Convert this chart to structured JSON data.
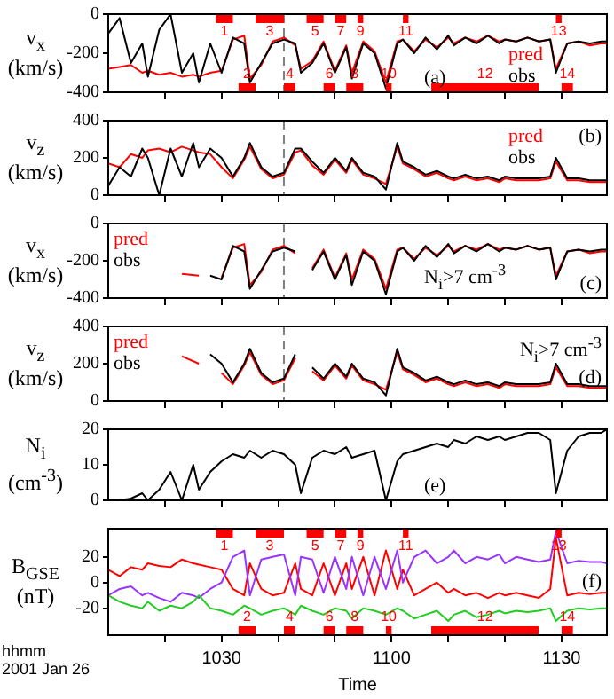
{
  "chart_data": [
    {
      "type": "line",
      "ylabel": "v$_{x}$ (km/s)",
      "legend": "bottom right",
      "annotations": [
        "(a)"
      ],
      "tick_labels": "y",
      "grid": false,
      "x": [
        "2001-01-26T10:10",
        "2001-01-26T10:12",
        "2001-01-26T10:14",
        "2001-01-26T10:16",
        "2001-01-26T10:17",
        "2001-01-26T10:19",
        "2001-01-26T10:21",
        "2001-01-26T10:23",
        "2001-01-26T10:25",
        "2001-01-26T10:26",
        "2001-01-26T10:28",
        "2001-01-26T10:30",
        "2001-01-26T10:32",
        "2001-01-26T10:34",
        "2001-01-26T10:35",
        "2001-01-26T10:37",
        "2001-01-26T10:39",
        "2001-01-26T10:41",
        "2001-01-26T10:43",
        "2001-01-26T10:44",
        "2001-01-26T10:46",
        "2001-01-26T10:48",
        "2001-01-26T10:50",
        "2001-01-26T10:52",
        "2001-01-26T10:53",
        "2001-01-26T10:55",
        "2001-01-26T10:57",
        "2001-01-26T10:59",
        "2001-01-26T11:01",
        "2001-01-26T11:02",
        "2001-01-26T11:04",
        "2001-01-26T11:06",
        "2001-01-26T11:08",
        "2001-01-26T11:10",
        "2001-01-26T11:11",
        "2001-01-26T11:13",
        "2001-01-26T11:15",
        "2001-01-26T11:17",
        "2001-01-26T11:19",
        "2001-01-26T11:20",
        "2001-01-26T11:22",
        "2001-01-26T11:24",
        "2001-01-26T11:26",
        "2001-01-26T11:28",
        "2001-01-26T11:29",
        "2001-01-26T11:31",
        "2001-01-26T11:33",
        "2001-01-26T11:35",
        "2001-01-26T11:37",
        "2001-01-26T11:38"
      ],
      "xlim": [
        "2001-01-26T10:10",
        "2001-01-26T11:38"
      ],
      "xticks": [
        {
          "value": "2001-01-26T10:20",
          "label": null
        },
        {
          "value": "2001-01-26T10:30",
          "label": null
        },
        {
          "value": "2001-01-26T10:40",
          "label": null
        },
        {
          "value": "2001-01-26T10:50",
          "label": null
        },
        {
          "value": "2001-01-26T11:00",
          "label": null
        },
        {
          "value": "2001-01-26T11:10",
          "label": null
        },
        {
          "value": "2001-01-26T11:20",
          "label": null
        },
        {
          "value": "2001-01-26T11:30",
          "label": null
        }
      ],
      "ylim": [
        -400,
        0
      ],
      "yticks": [
        -400,
        -200,
        0
      ],
      "ref_lines": [
        {
          "axis": "x",
          "value": "2001-01-26T10:41",
          "color": "#808080",
          "line_style": "dashed"
        }
      ],
      "bands": [
        {
          "axis": "x",
          "from": "2001-01-26T10:29",
          "to": "2001-01-26T10:32",
          "label": "1",
          "color": "#ff0000"
        },
        {
          "axis": "x",
          "from": "2001-01-26T10:33",
          "to": "2001-01-26T10:36",
          "label": "2",
          "color": "#ff0000"
        },
        {
          "axis": "x",
          "from": "2001-01-26T10:36",
          "to": "2001-01-26T10:41",
          "label": "3",
          "color": "#ff0000"
        },
        {
          "axis": "x",
          "from": "2001-01-26T10:41",
          "to": "2001-01-26T10:43",
          "label": "4",
          "color": "#ff0000"
        },
        {
          "axis": "x",
          "from": "2001-01-26T10:45",
          "to": "2001-01-26T10:48",
          "label": "5",
          "color": "#ff0000"
        },
        {
          "axis": "x",
          "from": "2001-01-26T10:48",
          "to": "2001-01-26T10:50",
          "label": "6",
          "color": "#ff0000"
        },
        {
          "axis": "x",
          "from": "2001-01-26T10:50",
          "to": "2001-01-26T10:52",
          "label": "7",
          "color": "#ff0000"
        },
        {
          "axis": "x",
          "from": "2001-01-26T10:52",
          "to": "2001-01-26T10:55",
          "label": "8",
          "color": "#ff0000"
        },
        {
          "axis": "x",
          "from": "2001-01-26T10:54",
          "to": "2001-01-26T10:55",
          "label": "9",
          "color": "#ff0000"
        },
        {
          "axis": "x",
          "from": "2001-01-26T10:59",
          "to": "2001-01-26T11:00",
          "label": "10",
          "color": "#ff0000"
        },
        {
          "axis": "x",
          "from": "2001-01-26T11:02",
          "to": "2001-01-26T11:03",
          "label": "11",
          "color": "#ff0000"
        },
        {
          "axis": "x",
          "from": "2001-01-26T11:07",
          "to": "2001-01-26T11:26",
          "label": "12",
          "color": "#ff0000"
        },
        {
          "axis": "x",
          "from": "2001-01-26T11:29",
          "to": "2001-01-26T11:30",
          "label": "13",
          "color": "#ff0000"
        },
        {
          "axis": "x",
          "from": "2001-01-26T11:30",
          "to": "2001-01-26T11:32",
          "label": "14",
          "color": "#ff0000"
        }
      ],
      "series": [
        {
          "name": "pred",
          "color": "#ff0000",
          "values": [
            -280,
            -270,
            -260,
            -300,
            -290,
            -310,
            -300,
            -320,
            -310,
            -320,
            -300,
            -290,
            -130,
            -110,
            -330,
            -260,
            -140,
            -120,
            -160,
            -280,
            -240,
            -140,
            -290,
            -160,
            -300,
            -140,
            -190,
            -350,
            -140,
            -130,
            -190,
            -130,
            -170,
            -120,
            -150,
            -120,
            -140,
            -110,
            -140,
            -130,
            -140,
            -120,
            -140,
            -130,
            -280,
            -150,
            -140,
            -160,
            -150,
            -150
          ]
        },
        {
          "name": "obs",
          "color": "#000000",
          "values": [
            -100,
            -20,
            -250,
            -150,
            -320,
            -80,
            0,
            -300,
            -200,
            -350,
            -150,
            -300,
            -120,
            -150,
            -350,
            -250,
            -150,
            -130,
            -150,
            -300,
            -250,
            -150,
            -300,
            -170,
            -330,
            -150,
            -200,
            -380,
            -150,
            -130,
            -200,
            -120,
            -180,
            -110,
            -160,
            -120,
            -150,
            -110,
            -150,
            -130,
            -140,
            -120,
            -140,
            -130,
            -300,
            -150,
            -140,
            -150,
            -140,
            -140
          ]
        }
      ]
    },
    {
      "type": "line",
      "ylabel": "v$_{z}$ (km/s)",
      "legend": "top right",
      "annotations": [
        "(b)"
      ],
      "tick_labels": "y",
      "grid": false,
      "x": [
        "2001-01-26T10:10",
        "2001-01-26T10:12",
        "2001-01-26T10:14",
        "2001-01-26T10:16",
        "2001-01-26T10:17",
        "2001-01-26T10:19",
        "2001-01-26T10:21",
        "2001-01-26T10:23",
        "2001-01-26T10:25",
        "2001-01-26T10:26",
        "2001-01-26T10:28",
        "2001-01-26T10:30",
        "2001-01-26T10:32",
        "2001-01-26T10:34",
        "2001-01-26T10:35",
        "2001-01-26T10:37",
        "2001-01-26T10:39",
        "2001-01-26T10:41",
        "2001-01-26T10:43",
        "2001-01-26T10:44",
        "2001-01-26T10:46",
        "2001-01-26T10:48",
        "2001-01-26T10:50",
        "2001-01-26T10:52",
        "2001-01-26T10:53",
        "2001-01-26T10:55",
        "2001-01-26T10:57",
        "2001-01-26T10:59",
        "2001-01-26T11:01",
        "2001-01-26T11:02",
        "2001-01-26T11:04",
        "2001-01-26T11:06",
        "2001-01-26T11:08",
        "2001-01-26T11:10",
        "2001-01-26T11:11",
        "2001-01-26T11:13",
        "2001-01-26T11:15",
        "2001-01-26T11:17",
        "2001-01-26T11:19",
        "2001-01-26T11:20",
        "2001-01-26T11:22",
        "2001-01-26T11:24",
        "2001-01-26T11:26",
        "2001-01-26T11:28",
        "2001-01-26T11:29",
        "2001-01-26T11:31",
        "2001-01-26T11:33",
        "2001-01-26T11:35",
        "2001-01-26T11:37",
        "2001-01-26T11:38"
      ],
      "xlim": [
        "2001-01-26T10:10",
        "2001-01-26T11:38"
      ],
      "xticks": [
        {
          "value": "2001-01-26T10:20",
          "label": null
        },
        {
          "value": "2001-01-26T10:30",
          "label": null
        },
        {
          "value": "2001-01-26T10:40",
          "label": null
        },
        {
          "value": "2001-01-26T10:50",
          "label": null
        },
        {
          "value": "2001-01-26T11:00",
          "label": null
        },
        {
          "value": "2001-01-26T11:10",
          "label": null
        },
        {
          "value": "2001-01-26T11:20",
          "label": null
        },
        {
          "value": "2001-01-26T11:30",
          "label": null
        }
      ],
      "ylim": [
        0,
        400
      ],
      "yticks": [
        0,
        200,
        400
      ],
      "ref_lines": [
        {
          "axis": "x",
          "value": "2001-01-26T10:41",
          "color": "#808080",
          "line_style": "dashed"
        }
      ],
      "series": [
        {
          "name": "pred",
          "color": "#ff0000",
          "values": [
            170,
            150,
            220,
            200,
            240,
            250,
            230,
            260,
            240,
            230,
            220,
            150,
            90,
            190,
            260,
            140,
            90,
            110,
            230,
            240,
            160,
            110,
            190,
            120,
            190,
            110,
            90,
            60,
            260,
            170,
            140,
            100,
            120,
            90,
            80,
            100,
            80,
            90,
            70,
            90,
            80,
            80,
            80,
            90,
            180,
            80,
            80,
            70,
            70,
            70
          ]
        },
        {
          "name": "obs",
          "color": "#000000",
          "values": [
            50,
            150,
            100,
            250,
            200,
            0,
            250,
            100,
            280,
            150,
            250,
            200,
            100,
            200,
            280,
            150,
            100,
            120,
            250,
            250,
            180,
            120,
            200,
            130,
            200,
            120,
            100,
            30,
            280,
            180,
            150,
            110,
            130,
            100,
            90,
            110,
            90,
            100,
            80,
            100,
            90,
            90,
            90,
            100,
            200,
            90,
            90,
            80,
            80,
            80
          ]
        }
      ]
    },
    {
      "type": "line",
      "ylabel": "v$_{x}$ (km/s)",
      "legend": "top left",
      "annotations": [
        "N$_{i}$>7 cm$^{-3}$",
        "(c)"
      ],
      "tick_labels": "y",
      "grid": false,
      "xlim": [
        "2001-01-26T10:10",
        "2001-01-26T11:38"
      ],
      "xticks": [
        {
          "value": "2001-01-26T10:20",
          "label": null
        },
        {
          "value": "2001-01-26T10:30",
          "label": null
        },
        {
          "value": "2001-01-26T10:40",
          "label": null
        },
        {
          "value": "2001-01-26T10:50",
          "label": null
        },
        {
          "value": "2001-01-26T11:00",
          "label": null
        },
        {
          "value": "2001-01-26T11:10",
          "label": null
        },
        {
          "value": "2001-01-26T11:20",
          "label": null
        },
        {
          "value": "2001-01-26T11:30",
          "label": null
        }
      ],
      "ylim": [
        -400,
        0
      ],
      "yticks": [
        -400,
        -200,
        0
      ],
      "ref_lines": [
        {
          "axis": "x",
          "value": "2001-01-26T10:41",
          "color": "#808080",
          "line_style": "dashed"
        }
      ],
      "series": [
        {
          "name": "pred",
          "color": "#ff0000",
          "x": [
            "2001-01-26T10:23",
            "2001-01-26T10:26",
            "2001-01-26T10:28",
            "2001-01-26T10:30",
            "2001-01-26T10:32",
            "2001-01-26T10:34",
            "2001-01-26T10:35",
            "2001-01-26T10:37",
            "2001-01-26T10:39",
            "2001-01-26T10:41",
            "2001-01-26T10:43",
            "2001-01-26T10:44",
            "2001-01-26T10:46",
            "2001-01-26T10:48",
            "2001-01-26T10:50",
            "2001-01-26T10:52",
            "2001-01-26T10:53",
            "2001-01-26T10:55",
            "2001-01-26T10:57",
            "2001-01-26T10:59",
            "2001-01-26T11:01",
            "2001-01-26T11:02",
            "2001-01-26T11:04",
            "2001-01-26T11:06",
            "2001-01-26T11:08",
            "2001-01-26T11:10",
            "2001-01-26T11:11",
            "2001-01-26T11:13",
            "2001-01-26T11:15",
            "2001-01-26T11:17",
            "2001-01-26T11:19",
            "2001-01-26T11:20",
            "2001-01-26T11:22",
            "2001-01-26T11:24",
            "2001-01-26T11:26",
            "2001-01-26T11:28",
            "2001-01-26T11:29",
            "2001-01-26T11:31",
            "2001-01-26T11:33",
            "2001-01-26T11:35",
            "2001-01-26T11:37",
            "2001-01-26T11:38"
          ],
          "values": [
            -270,
            -280,
            null,
            -290,
            -130,
            -110,
            -330,
            -260,
            -140,
            -120,
            -160,
            null,
            -240,
            -140,
            -290,
            -160,
            -300,
            -140,
            -190,
            -350,
            -140,
            -130,
            -190,
            -130,
            -170,
            -120,
            -150,
            -120,
            -140,
            -110,
            -140,
            -130,
            -140,
            -120,
            -140,
            -130,
            -280,
            -150,
            -140,
            -160,
            -150,
            -150
          ]
        },
        {
          "name": "obs",
          "color": "#000000",
          "x": [
            "2001-01-26T10:28",
            "2001-01-26T10:30",
            "2001-01-26T10:32",
            "2001-01-26T10:34",
            "2001-01-26T10:35",
            "2001-01-26T10:37",
            "2001-01-26T10:39",
            "2001-01-26T10:41",
            "2001-01-26T10:43",
            "2001-01-26T10:44",
            "2001-01-26T10:46",
            "2001-01-26T10:48",
            "2001-01-26T10:50",
            "2001-01-26T10:52",
            "2001-01-26T10:53",
            "2001-01-26T10:55",
            "2001-01-26T10:57",
            "2001-01-26T10:59",
            "2001-01-26T11:01",
            "2001-01-26T11:02",
            "2001-01-26T11:04",
            "2001-01-26T11:06",
            "2001-01-26T11:08",
            "2001-01-26T11:10",
            "2001-01-26T11:11",
            "2001-01-26T11:13",
            "2001-01-26T11:15",
            "2001-01-26T11:17",
            "2001-01-26T11:19",
            "2001-01-26T11:20",
            "2001-01-26T11:22",
            "2001-01-26T11:24",
            "2001-01-26T11:26",
            "2001-01-26T11:28",
            "2001-01-26T11:29",
            "2001-01-26T11:31",
            "2001-01-26T11:33",
            "2001-01-26T11:35",
            "2001-01-26T11:37",
            "2001-01-26T11:38"
          ],
          "values": [
            -280,
            -300,
            -120,
            -150,
            -350,
            -250,
            -150,
            -130,
            -150,
            null,
            -250,
            -150,
            -300,
            -170,
            -330,
            -150,
            -200,
            -380,
            -150,
            -130,
            -200,
            -120,
            -180,
            -110,
            -160,
            -120,
            -150,
            -110,
            -150,
            -130,
            -140,
            -120,
            -140,
            -130,
            -300,
            -150,
            -140,
            -150,
            -140,
            -140
          ]
        }
      ]
    },
    {
      "type": "line",
      "ylabel": "v$_{z}$ (km/s)",
      "legend": "top left",
      "annotations": [
        "N$_{i}$>7 cm$^{-3}$",
        "(d)"
      ],
      "tick_labels": "y",
      "grid": false,
      "xlim": [
        "2001-01-26T10:10",
        "2001-01-26T11:38"
      ],
      "xticks": [
        {
          "value": "2001-01-26T10:20",
          "label": null
        },
        {
          "value": "2001-01-26T10:30",
          "label": null
        },
        {
          "value": "2001-01-26T10:40",
          "label": null
        },
        {
          "value": "2001-01-26T10:50",
          "label": null
        },
        {
          "value": "2001-01-26T11:00",
          "label": null
        },
        {
          "value": "2001-01-26T11:10",
          "label": null
        },
        {
          "value": "2001-01-26T11:20",
          "label": null
        },
        {
          "value": "2001-01-26T11:30",
          "label": null
        }
      ],
      "ylim": [
        0,
        400
      ],
      "yticks": [
        0,
        200,
        400
      ],
      "ref_lines": [
        {
          "axis": "x",
          "value": "2001-01-26T10:41",
          "color": "#808080",
          "line_style": "dashed"
        }
      ],
      "series": [
        {
          "name": "pred",
          "color": "#ff0000",
          "x": [
            "2001-01-26T10:23",
            "2001-01-26T10:26",
            "2001-01-26T10:28",
            "2001-01-26T10:30",
            "2001-01-26T10:32",
            "2001-01-26T10:34",
            "2001-01-26T10:35",
            "2001-01-26T10:37",
            "2001-01-26T10:39",
            "2001-01-26T10:41",
            "2001-01-26T10:43",
            "2001-01-26T10:44",
            "2001-01-26T10:46",
            "2001-01-26T10:48",
            "2001-01-26T10:50",
            "2001-01-26T10:52",
            "2001-01-26T10:53",
            "2001-01-26T10:55",
            "2001-01-26T10:57",
            "2001-01-26T10:59",
            "2001-01-26T11:01",
            "2001-01-26T11:02",
            "2001-01-26T11:04",
            "2001-01-26T11:06",
            "2001-01-26T11:08",
            "2001-01-26T11:10",
            "2001-01-26T11:11",
            "2001-01-26T11:13",
            "2001-01-26T11:15",
            "2001-01-26T11:17",
            "2001-01-26T11:19",
            "2001-01-26T11:20",
            "2001-01-26T11:22",
            "2001-01-26T11:24",
            "2001-01-26T11:26",
            "2001-01-26T11:28",
            "2001-01-26T11:29",
            "2001-01-26T11:31",
            "2001-01-26T11:33",
            "2001-01-26T11:35",
            "2001-01-26T11:37",
            "2001-01-26T11:38"
          ],
          "values": [
            240,
            200,
            null,
            150,
            90,
            190,
            260,
            140,
            90,
            110,
            230,
            null,
            160,
            110,
            190,
            120,
            190,
            110,
            90,
            60,
            260,
            170,
            140,
            100,
            120,
            90,
            80,
            100,
            80,
            90,
            70,
            90,
            80,
            80,
            80,
            90,
            180,
            80,
            80,
            70,
            70,
            70
          ]
        },
        {
          "name": "obs",
          "color": "#000000",
          "x": [
            "2001-01-26T10:28",
            "2001-01-26T10:30",
            "2001-01-26T10:32",
            "2001-01-26T10:34",
            "2001-01-26T10:35",
            "2001-01-26T10:37",
            "2001-01-26T10:39",
            "2001-01-26T10:41",
            "2001-01-26T10:43",
            "2001-01-26T10:44",
            "2001-01-26T10:46",
            "2001-01-26T10:48",
            "2001-01-26T10:50",
            "2001-01-26T10:52",
            "2001-01-26T10:53",
            "2001-01-26T10:55",
            "2001-01-26T10:57",
            "2001-01-26T10:59",
            "2001-01-26T11:01",
            "2001-01-26T11:02",
            "2001-01-26T11:04",
            "2001-01-26T11:06",
            "2001-01-26T11:08",
            "2001-01-26T11:10",
            "2001-01-26T11:11",
            "2001-01-26T11:13",
            "2001-01-26T11:15",
            "2001-01-26T11:17",
            "2001-01-26T11:19",
            "2001-01-26T11:20",
            "2001-01-26T11:22",
            "2001-01-26T11:24",
            "2001-01-26T11:26",
            "2001-01-26T11:28",
            "2001-01-26T11:29",
            "2001-01-26T11:31",
            "2001-01-26T11:33",
            "2001-01-26T11:35",
            "2001-01-26T11:37",
            "2001-01-26T11:38"
          ],
          "values": [
            250,
            200,
            100,
            200,
            280,
            150,
            100,
            120,
            250,
            null,
            180,
            120,
            200,
            130,
            200,
            120,
            100,
            30,
            280,
            180,
            150,
            110,
            130,
            100,
            90,
            110,
            90,
            100,
            80,
            100,
            90,
            90,
            90,
            100,
            200,
            90,
            90,
            80,
            80,
            80
          ]
        }
      ]
    },
    {
      "type": "line",
      "ylabel": "N$_{i}$ (cm$^{-3}$)",
      "annotations": [
        "(e)"
      ],
      "tick_labels": "y",
      "grid": false,
      "x": [
        "2001-01-26T10:10",
        "2001-01-26T10:12",
        "2001-01-26T10:14",
        "2001-01-26T10:16",
        "2001-01-26T10:17",
        "2001-01-26T10:19",
        "2001-01-26T10:21",
        "2001-01-26T10:23",
        "2001-01-26T10:25",
        "2001-01-26T10:26",
        "2001-01-26T10:28",
        "2001-01-26T10:30",
        "2001-01-26T10:32",
        "2001-01-26T10:34",
        "2001-01-26T10:35",
        "2001-01-26T10:37",
        "2001-01-26T10:39",
        "2001-01-26T10:41",
        "2001-01-26T10:43",
        "2001-01-26T10:44",
        "2001-01-26T10:46",
        "2001-01-26T10:48",
        "2001-01-26T10:50",
        "2001-01-26T10:52",
        "2001-01-26T10:53",
        "2001-01-26T10:55",
        "2001-01-26T10:57",
        "2001-01-26T10:59",
        "2001-01-26T11:01",
        "2001-01-26T11:02",
        "2001-01-26T11:04",
        "2001-01-26T11:06",
        "2001-01-26T11:08",
        "2001-01-26T11:10",
        "2001-01-26T11:11",
        "2001-01-26T11:13",
        "2001-01-26T11:15",
        "2001-01-26T11:17",
        "2001-01-26T11:19",
        "2001-01-26T11:20",
        "2001-01-26T11:22",
        "2001-01-26T11:24",
        "2001-01-26T11:26",
        "2001-01-26T11:28",
        "2001-01-26T11:29",
        "2001-01-26T11:31",
        "2001-01-26T11:33",
        "2001-01-26T11:35",
        "2001-01-26T11:37",
        "2001-01-26T11:38"
      ],
      "xlim": [
        "2001-01-26T10:10",
        "2001-01-26T11:38"
      ],
      "xticks": [
        {
          "value": "2001-01-26T10:20",
          "label": null
        },
        {
          "value": "2001-01-26T10:30",
          "label": null
        },
        {
          "value": "2001-01-26T10:40",
          "label": null
        },
        {
          "value": "2001-01-26T10:50",
          "label": null
        },
        {
          "value": "2001-01-26T11:00",
          "label": null
        },
        {
          "value": "2001-01-26T11:10",
          "label": null
        },
        {
          "value": "2001-01-26T11:20",
          "label": null
        },
        {
          "value": "2001-01-26T11:30",
          "label": null
        }
      ],
      "ylim": [
        0,
        20
      ],
      "yticks": [
        0,
        10,
        20
      ],
      "series": [
        {
          "color": "#000000",
          "values": [
            0,
            0,
            0.5,
            2,
            0,
            3,
            8,
            0,
            10,
            3,
            8,
            11,
            13,
            12,
            14,
            12,
            14,
            13,
            10,
            2,
            12,
            14,
            13,
            15,
            12,
            13,
            14,
            0,
            11,
            13,
            14,
            15,
            16,
            15,
            17,
            16,
            18,
            17,
            18,
            17,
            18,
            19,
            19,
            17,
            2,
            14,
            18,
            19,
            19,
            20
          ]
        }
      ]
    },
    {
      "type": "line",
      "ylabel": "B$_{GSE}$ (nT)",
      "xlabel": "Time",
      "annotations": [
        "(f)",
        "hhmm",
        "2001 Jan 26"
      ],
      "grid": false,
      "x": [
        "2001-01-26T10:10",
        "2001-01-26T10:12",
        "2001-01-26T10:14",
        "2001-01-26T10:16",
        "2001-01-26T10:17",
        "2001-01-26T10:19",
        "2001-01-26T10:21",
        "2001-01-26T10:23",
        "2001-01-26T10:25",
        "2001-01-26T10:26",
        "2001-01-26T10:28",
        "2001-01-26T10:30",
        "2001-01-26T10:32",
        "2001-01-26T10:34",
        "2001-01-26T10:35",
        "2001-01-26T10:37",
        "2001-01-26T10:39",
        "2001-01-26T10:41",
        "2001-01-26T10:43",
        "2001-01-26T10:44",
        "2001-01-26T10:46",
        "2001-01-26T10:48",
        "2001-01-26T10:50",
        "2001-01-26T10:52",
        "2001-01-26T10:53",
        "2001-01-26T10:55",
        "2001-01-26T10:57",
        "2001-01-26T10:59",
        "2001-01-26T11:01",
        "2001-01-26T11:02",
        "2001-01-26T11:04",
        "2001-01-26T11:06",
        "2001-01-26T11:08",
        "2001-01-26T11:10",
        "2001-01-26T11:11",
        "2001-01-26T11:13",
        "2001-01-26T11:15",
        "2001-01-26T11:17",
        "2001-01-26T11:19",
        "2001-01-26T11:20",
        "2001-01-26T11:22",
        "2001-01-26T11:24",
        "2001-01-26T11:26",
        "2001-01-26T11:28",
        "2001-01-26T11:29",
        "2001-01-26T11:31",
        "2001-01-26T11:33",
        "2001-01-26T11:35",
        "2001-01-26T11:37",
        "2001-01-26T11:38"
      ],
      "xlim": [
        "2001-01-26T10:10",
        "2001-01-26T11:38"
      ],
      "xticks": [
        {
          "value": "2001-01-26T10:20",
          "label": null
        },
        {
          "value": "2001-01-26T10:30",
          "label": "1030"
        },
        {
          "value": "2001-01-26T10:40",
          "label": null
        },
        {
          "value": "2001-01-26T10:50",
          "label": null
        },
        {
          "value": "2001-01-26T11:00",
          "label": "1100"
        },
        {
          "value": "2001-01-26T11:10",
          "label": null
        },
        {
          "value": "2001-01-26T11:20",
          "label": null
        },
        {
          "value": "2001-01-26T11:30",
          "label": "1130"
        }
      ],
      "ylim": [
        -41,
        42
      ],
      "yticks": [
        -20,
        0,
        20
      ],
      "bands": [
        {
          "axis": "x",
          "from": "2001-01-26T10:29",
          "to": "2001-01-26T10:32",
          "label": "1",
          "color": "#ff0000"
        },
        {
          "axis": "x",
          "from": "2001-01-26T10:33",
          "to": "2001-01-26T10:36",
          "label": "2",
          "color": "#ff0000"
        },
        {
          "axis": "x",
          "from": "2001-01-26T10:36",
          "to": "2001-01-26T10:41",
          "label": "3",
          "color": "#ff0000"
        },
        {
          "axis": "x",
          "from": "2001-01-26T10:41",
          "to": "2001-01-26T10:43",
          "label": "4",
          "color": "#ff0000"
        },
        {
          "axis": "x",
          "from": "2001-01-26T10:45",
          "to": "2001-01-26T10:48",
          "label": "5",
          "color": "#ff0000"
        },
        {
          "axis": "x",
          "from": "2001-01-26T10:48",
          "to": "2001-01-26T10:50",
          "label": "6",
          "color": "#ff0000"
        },
        {
          "axis": "x",
          "from": "2001-01-26T10:50",
          "to": "2001-01-26T10:52",
          "label": "7",
          "color": "#ff0000"
        },
        {
          "axis": "x",
          "from": "2001-01-26T10:52",
          "to": "2001-01-26T10:55",
          "label": "8",
          "color": "#ff0000"
        },
        {
          "axis": "x",
          "from": "2001-01-26T10:54",
          "to": "2001-01-26T10:55",
          "label": "9",
          "color": "#ff0000"
        },
        {
          "axis": "x",
          "from": "2001-01-26T10:59",
          "to": "2001-01-26T11:00",
          "label": "10",
          "color": "#ff0000"
        },
        {
          "axis": "x",
          "from": "2001-01-26T11:02",
          "to": "2001-01-26T11:03",
          "label": "11",
          "color": "#ff0000"
        },
        {
          "axis": "x",
          "from": "2001-01-26T11:07",
          "to": "2001-01-26T11:26",
          "label": "12",
          "color": "#ff0000"
        },
        {
          "axis": "x",
          "from": "2001-01-26T11:29",
          "to": "2001-01-26T11:30",
          "label": "13",
          "color": "#ff0000"
        },
        {
          "axis": "x",
          "from": "2001-01-26T11:30",
          "to": "2001-01-26T11:32",
          "label": "14",
          "color": "#ff0000"
        }
      ],
      "series": [
        {
          "color": "#ff0000",
          "values": [
            10,
            5,
            12,
            10,
            15,
            13,
            12,
            18,
            15,
            14,
            12,
            10,
            -5,
            -10,
            15,
            -5,
            -10,
            -8,
            15,
            -5,
            -10,
            15,
            -10,
            15,
            -5,
            20,
            -10,
            25,
            -5,
            10,
            -10,
            -5,
            0,
            -8,
            -5,
            -10,
            -8,
            -12,
            -8,
            -10,
            -8,
            -10,
            -12,
            -5,
            35,
            -10,
            -8,
            -9,
            -8,
            -8
          ]
        },
        {
          "color": "#9933ff",
          "values": [
            -10,
            -5,
            -3,
            -10,
            -8,
            -12,
            -15,
            -8,
            -10,
            -12,
            -5,
            0,
            20,
            25,
            -10,
            18,
            20,
            22,
            -10,
            20,
            18,
            -8,
            20,
            -5,
            20,
            -10,
            20,
            -5,
            25,
            0,
            20,
            25,
            15,
            20,
            25,
            15,
            20,
            18,
            22,
            15,
            20,
            18,
            16,
            18,
            40,
            15,
            17,
            16,
            16,
            15
          ]
        },
        {
          "color": "#22cc22",
          "values": [
            -10,
            -15,
            -18,
            -20,
            -15,
            -22,
            -18,
            -20,
            -15,
            -10,
            -20,
            -22,
            -25,
            -18,
            -20,
            -25,
            -22,
            -20,
            -25,
            -18,
            -22,
            -25,
            -20,
            -22,
            -28,
            -20,
            -22,
            -25,
            -20,
            -22,
            -28,
            -25,
            -22,
            -30,
            -25,
            -22,
            -27,
            -25,
            -22,
            -24,
            -22,
            -23,
            -22,
            -20,
            -30,
            -22,
            -20,
            -21,
            -20,
            -20
          ]
        }
      ]
    }
  ]
}
